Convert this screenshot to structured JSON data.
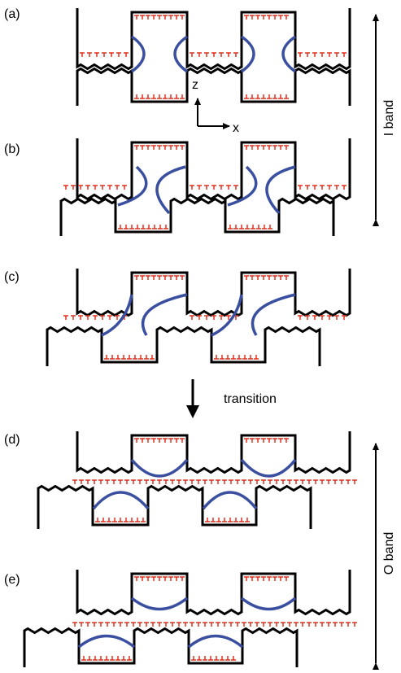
{
  "panels": [
    {
      "label": "(a)"
    },
    {
      "label": "(b)"
    },
    {
      "label": "(c)"
    },
    {
      "label": "(d)"
    },
    {
      "label": "(e)"
    }
  ],
  "axes": {
    "z": "z",
    "x": "x"
  },
  "i_band": "I band",
  "transition": "transition",
  "o_band": "O band"
}
